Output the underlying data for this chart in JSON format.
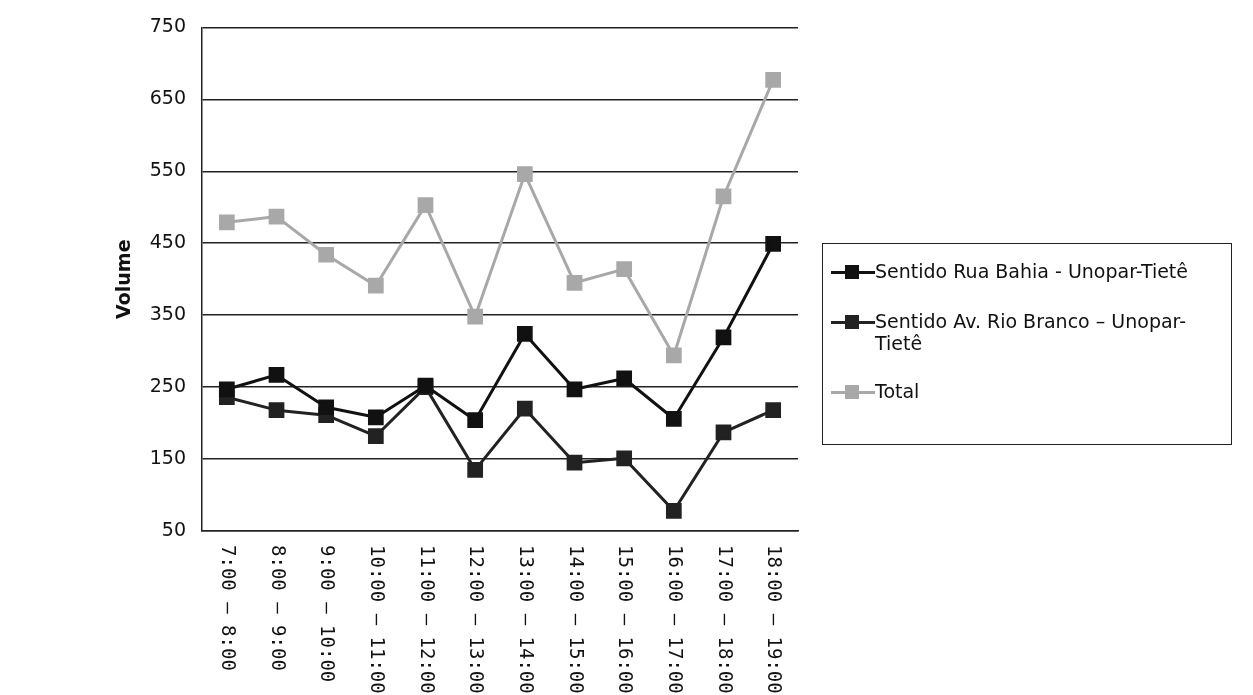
{
  "chart_data": {
    "type": "line",
    "ylabel": "Volume",
    "categories": [
      "7:00 – 8:00",
      "8:00 – 9:00",
      "9:00 – 10:00",
      "10:00 – 11:00",
      "11:00 – 12:00",
      "12:00 – 13:00",
      "13:00 – 14:00",
      "14:00 – 15:00",
      "15:00 – 16:00",
      "16:00 – 17:00",
      "17:00 – 18:00",
      "18:00 – 19:00"
    ],
    "series": [
      {
        "name": "Sentido Rua Bahia - Unopar-Tietê",
        "color": "#111111",
        "values": [
          247,
          267,
          222,
          208,
          252,
          204,
          324,
          247,
          262,
          206,
          319,
          449
        ]
      },
      {
        "name": "Sentido Av. Rio Branco – Unopar-Tietê",
        "color": "#222222",
        "values": [
          236,
          218,
          211,
          182,
          250,
          135,
          220,
          145,
          151,
          78,
          187,
          218
        ]
      },
      {
        "name": "Total",
        "color": "#a8a8a8",
        "values": [
          479,
          487,
          434,
          391,
          503,
          348,
          546,
          395,
          414,
          294,
          515,
          677
        ]
      }
    ],
    "ylim": [
      50,
      750
    ],
    "yticks": [
      50,
      150,
      250,
      350,
      450,
      550,
      650,
      750
    ],
    "grid": "y",
    "legend": "right",
    "marker": "square",
    "line_style": "solid"
  }
}
